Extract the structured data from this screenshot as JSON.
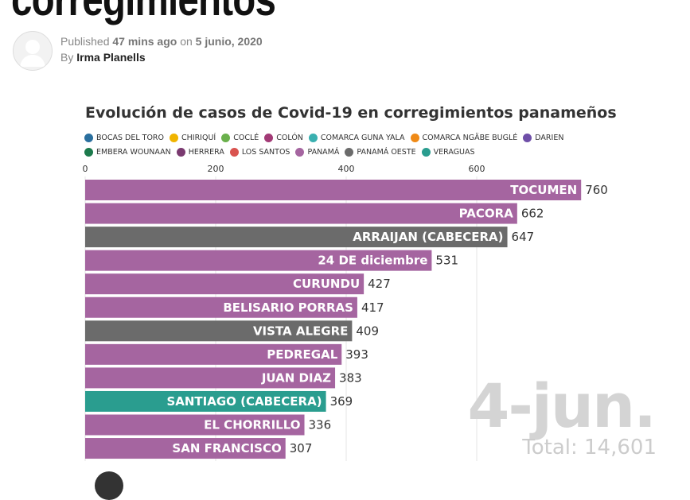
{
  "article": {
    "headline": "corregimientos",
    "published_prefix": "Published",
    "published_ago": "47 mins ago",
    "published_on": "on",
    "published_date": "5 junio, 2020",
    "by_prefix": "By",
    "author": "Irma Planells"
  },
  "icons": {
    "avatar": "user-avatar-icon"
  },
  "chart_data": {
    "type": "bar",
    "orientation": "horizontal",
    "title": "Evolución de casos de Covid-19 en corregimientos panameños",
    "legend": [
      {
        "name": "BOCAS DEL TORO",
        "color": "#2a6f9e"
      },
      {
        "name": "CHIRIQUÍ",
        "color": "#f0b400"
      },
      {
        "name": "COCLÉ",
        "color": "#6ab04c"
      },
      {
        "name": "COLÓN",
        "color": "#a23a76"
      },
      {
        "name": "COMARCA GUNA YALA",
        "color": "#3ab0b0"
      },
      {
        "name": "COMARCA NGÄBE BUGLÉ",
        "color": "#ef8a17"
      },
      {
        "name": "DARIEN",
        "color": "#6f4fa8"
      },
      {
        "name": "EMBERA WOUNAAN",
        "color": "#1c7a4c"
      },
      {
        "name": "HERRERA",
        "color": "#7a3a70"
      },
      {
        "name": "LOS SANTOS",
        "color": "#d9534f"
      },
      {
        "name": "PANAMÁ",
        "color": "#a565a0"
      },
      {
        "name": "PANAMÁ OESTE",
        "color": "#6b6b6b"
      },
      {
        "name": "VERAGUAS",
        "color": "#2a9d8f"
      }
    ],
    "xticks": [
      0,
      200,
      400,
      600
    ],
    "xtick_labels": [
      "0",
      "200",
      "400",
      "600"
    ],
    "xlim": [
      0,
      800
    ],
    "grid": true,
    "bars": [
      {
        "label": "TOCUMEN",
        "value": 760,
        "value_label": "760",
        "province": "PANAMÁ"
      },
      {
        "label": "PACORA",
        "value": 662,
        "value_label": "662",
        "province": "PANAMÁ"
      },
      {
        "label": "ARRAIJAN (CABECERA)",
        "value": 647,
        "value_label": "647",
        "province": "PANAMÁ OESTE"
      },
      {
        "label": "24 DE diciembre",
        "value": 531,
        "value_label": "531",
        "province": "PANAMÁ"
      },
      {
        "label": "CURUNDU",
        "value": 427,
        "value_label": "427",
        "province": "PANAMÁ"
      },
      {
        "label": "BELISARIO PORRAS",
        "value": 417,
        "value_label": "417",
        "province": "PANAMÁ"
      },
      {
        "label": "VISTA ALEGRE",
        "value": 409,
        "value_label": "409",
        "province": "PANAMÁ OESTE"
      },
      {
        "label": "PEDREGAL",
        "value": 393,
        "value_label": "393",
        "province": "PANAMÁ"
      },
      {
        "label": "JUAN DIAZ",
        "value": 383,
        "value_label": "383",
        "province": "PANAMÁ"
      },
      {
        "label": "SANTIAGO (CABECERA)",
        "value": 369,
        "value_label": "369",
        "province": "VERAGUAS"
      },
      {
        "label": "EL CHORRILLO",
        "value": 336,
        "value_label": "336",
        "province": "PANAMÁ"
      },
      {
        "label": "SAN FRANCISCO",
        "value": 307,
        "value_label": "307",
        "province": "PANAMÁ"
      }
    ],
    "date_label": "4-jun.",
    "total_label": "Total: 14,601"
  }
}
